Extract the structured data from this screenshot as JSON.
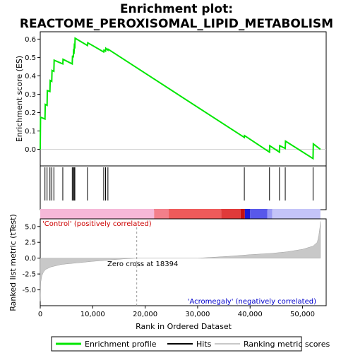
{
  "chart_data": {
    "type": "line",
    "title_line1": "Enrichment plot:",
    "title_line2": "REACTOME_PEROXISOMAL_LIPID_METABOLISM",
    "top_panel": {
      "ylabel": "Enrichment score (ES)",
      "ylim": [
        -0.09,
        0.64
      ],
      "yticks": [
        "0.0",
        "0.1",
        "0.2",
        "0.3",
        "0.4",
        "0.5",
        "0.6"
      ],
      "ytick_values": [
        0.0,
        0.1,
        0.2,
        0.3,
        0.4,
        0.5,
        0.6
      ],
      "series_name": "Enrichment profile",
      "color": "#00e600",
      "x": [
        0,
        50,
        900,
        950,
        1300,
        1350,
        1850,
        1900,
        2200,
        2250,
        2600,
        2650,
        4300,
        4350,
        6100,
        6150,
        6300,
        6350,
        6450,
        6500,
        6600,
        6650,
        9000,
        9050,
        12100,
        12150,
        12450,
        12500,
        12900,
        12950,
        38900,
        38950,
        43700,
        43750,
        45600,
        45650,
        46700,
        46750,
        52000,
        52050,
        53400
      ],
      "y": [
        0.0,
        0.175,
        0.165,
        0.245,
        0.24,
        0.32,
        0.315,
        0.375,
        0.37,
        0.43,
        0.425,
        0.485,
        0.465,
        0.49,
        0.465,
        0.51,
        0.5,
        0.535,
        0.53,
        0.565,
        0.56,
        0.605,
        0.565,
        0.58,
        0.53,
        0.54,
        0.535,
        0.55,
        0.54,
        0.545,
        0.065,
        0.075,
        -0.015,
        0.02,
        -0.015,
        0.02,
        0.005,
        0.045,
        -0.05,
        0.03,
        0.0
      ]
    },
    "hits": [
      900,
      1300,
      1850,
      2200,
      2600,
      4300,
      6100,
      6300,
      6450,
      6600,
      9000,
      12100,
      12450,
      12900,
      38900,
      43700,
      45600,
      46700,
      52000
    ],
    "bottom_panel": {
      "ylabel": "Ranked list metric (tTest)",
      "ylim": [
        -7.5,
        6.2
      ],
      "yticks": [
        "-5.0",
        "-2.5",
        "0.0",
        "2.5",
        "5.0"
      ],
      "ytick_values": [
        -5.0,
        -2.5,
        0.0,
        2.5,
        5.0
      ],
      "xlabel": "Rank in Ordered Dataset",
      "xlim": [
        0,
        54500
      ],
      "xticks": [
        "0",
        "10,000",
        "20,000",
        "30,000",
        "40,000",
        "50,000"
      ],
      "xtick_values": [
        0,
        10000,
        20000,
        30000,
        40000,
        50000
      ],
      "zero_cross_label": "Zero cross at 18394",
      "zero_cross": 18394,
      "positive_label": "'Control' (positively correlated)",
      "negative_label": "'Acromegaly' (negatively correlated)",
      "metric_x": [
        0,
        100,
        300,
        600,
        1000,
        2000,
        4000,
        7000,
        10000,
        13000,
        16000,
        18394,
        22000,
        30000,
        36000,
        40000,
        44000,
        47000,
        50000,
        52000,
        52800,
        53100,
        53300,
        53400
      ],
      "metric_y": [
        -6.8,
        -3.8,
        -2.8,
        -2.2,
        -1.8,
        -1.4,
        -1.0,
        -0.75,
        -0.5,
        -0.3,
        -0.12,
        0.0,
        0.0,
        0.0,
        0.3,
        0.55,
        0.75,
        1.0,
        1.4,
        1.9,
        2.5,
        3.6,
        4.8,
        5.8
      ]
    },
    "legend": {
      "items": [
        "Enrichment profile",
        "Hits",
        "Ranking metric scores"
      ],
      "colors": [
        "#00e600",
        "#000000",
        "#c8c8c8"
      ]
    }
  }
}
